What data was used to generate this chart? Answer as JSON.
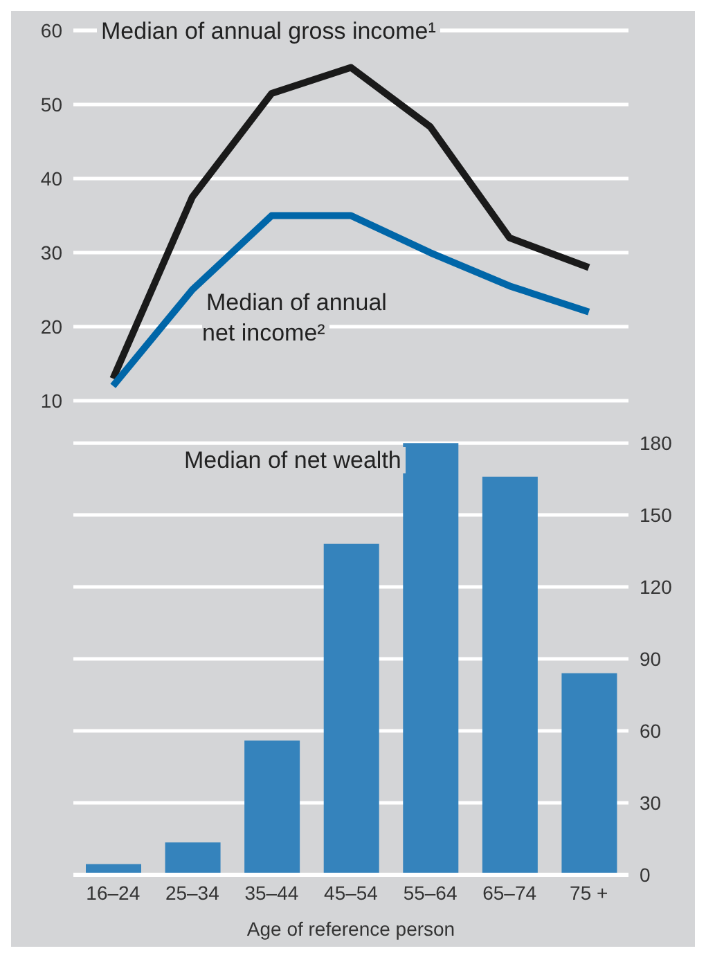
{
  "chart_data": {
    "type": "line",
    "xlabel": "Age of reference person",
    "categories": [
      "16–24",
      "25–34",
      "35–44",
      "45–54",
      "55–64",
      "65–74",
      "75 +"
    ],
    "series": [
      {
        "name": "Median of annual gross income¹",
        "color": "#1a1a1a",
        "values": [
          13,
          37.5,
          51.5,
          55,
          47,
          32,
          28
        ]
      },
      {
        "name": "Median of annual net income²",
        "color": "#0066a8",
        "values": [
          12,
          25,
          35,
          35,
          30,
          25.5,
          22
        ]
      },
      {
        "name": "Median of net wealth",
        "type": "bar",
        "axis": "y2",
        "color": "#3583bc",
        "values": [
          4.5,
          13.5,
          56,
          138,
          180,
          166,
          84
        ]
      }
    ],
    "ylim": [
      -54,
      60
    ],
    "yticks": [
      10,
      20,
      30,
      40,
      50,
      60
    ],
    "y2lim": [
      0,
      352
    ],
    "y2ticks": [
      0,
      30,
      60,
      90,
      120,
      150,
      180
    ],
    "grid": "y"
  }
}
